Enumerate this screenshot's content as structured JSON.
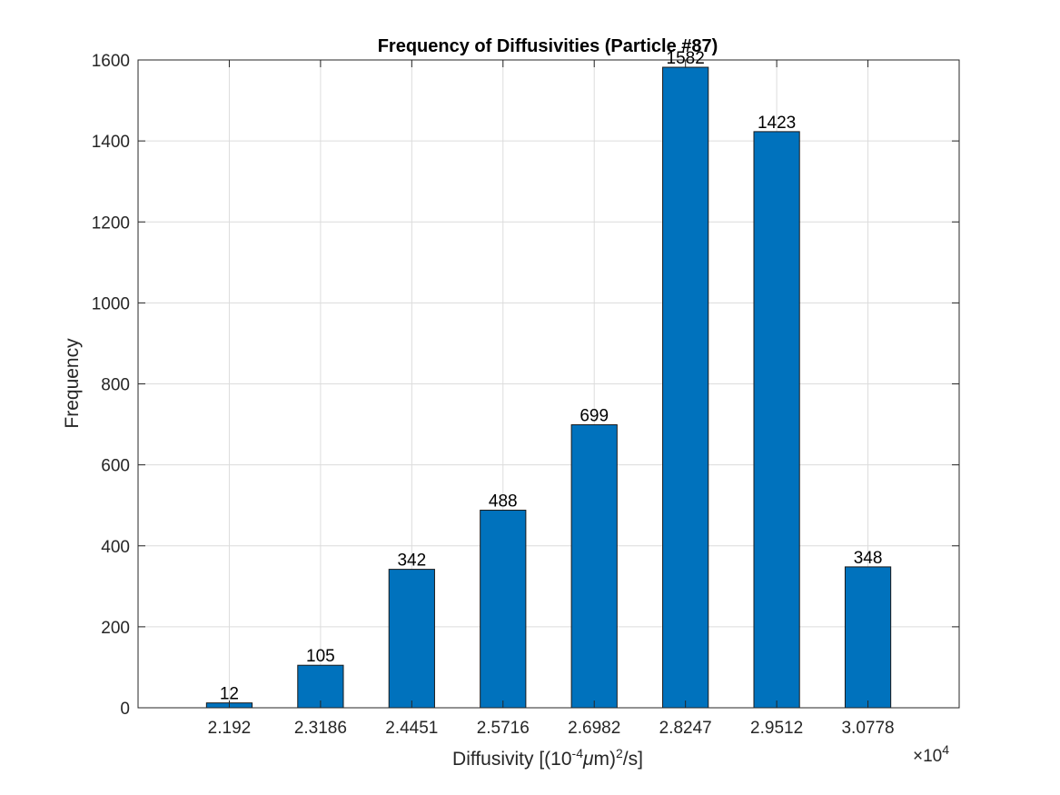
{
  "chart_data": {
    "type": "bar",
    "title": "Frequency of Diffusivities (Particle #87)",
    "xlabel_prefix": "Diffusivity [(10",
    "xlabel_exp1": "-4",
    "xlabel_mu": "μ",
    "xlabel_mid": "m)",
    "xlabel_exp2": "2",
    "xlabel_suffix": "/s]",
    "ylabel": "Frequency",
    "x_multiplier_base": "×10",
    "x_multiplier_exp": "4",
    "categories": [
      "2.192",
      "2.3186",
      "2.4451",
      "2.5716",
      "2.6982",
      "2.8247",
      "2.9512",
      "3.0778"
    ],
    "values": [
      12,
      105,
      342,
      488,
      699,
      1582,
      1423,
      348
    ],
    "data_labels": [
      "12",
      "105",
      "342",
      "488",
      "699",
      "1582",
      "1423",
      "348"
    ],
    "ylim": [
      0,
      1600
    ],
    "yticks": [
      "0",
      "200",
      "400",
      "600",
      "800",
      "1000",
      "1200",
      "1400",
      "1600"
    ],
    "bar_color": "#0072BD",
    "grid": true
  }
}
